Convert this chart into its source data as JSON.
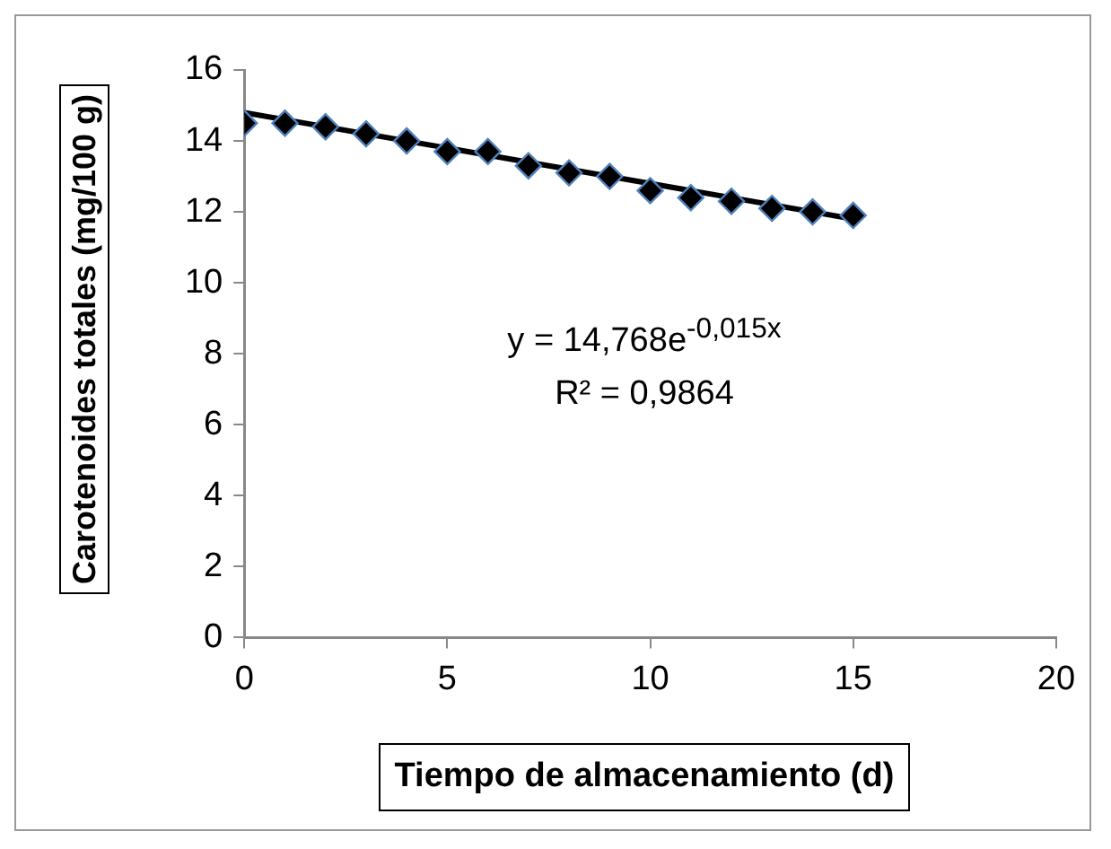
{
  "chart_data": {
    "type": "scatter",
    "xlabel": "Tiempo de almacenamiento (d)",
    "ylabel": "Carotenoides totales (mg/100 g)",
    "xlim": [
      0,
      20
    ],
    "xticks": [
      0,
      5,
      10,
      15,
      20
    ],
    "ylim": [
      0,
      16
    ],
    "yticks": [
      0,
      2,
      4,
      6,
      8,
      10,
      12,
      14,
      16
    ],
    "grid": false,
    "legend": false,
    "series": [
      {
        "color": "#000000",
        "marker": "diamond",
        "x": [
          0,
          1,
          2,
          3,
          4,
          5,
          6,
          7,
          8,
          9,
          10,
          11,
          12,
          13,
          14,
          15
        ],
        "values": [
          14.5,
          14.5,
          14.4,
          14.2,
          14.0,
          13.7,
          13.7,
          13.3,
          13.1,
          13.0,
          12.6,
          12.4,
          12.3,
          12.1,
          12.0,
          11.9
        ]
      },
      {
        "type": "line",
        "color": "#000000",
        "marker": "none",
        "x": [
          0,
          15
        ],
        "values": [
          14.8,
          11.8
        ]
      }
    ],
    "annotations": [
      "y = 14,768e$^{-0,015x}$",
      "R² = 0,9864"
    ]
  }
}
